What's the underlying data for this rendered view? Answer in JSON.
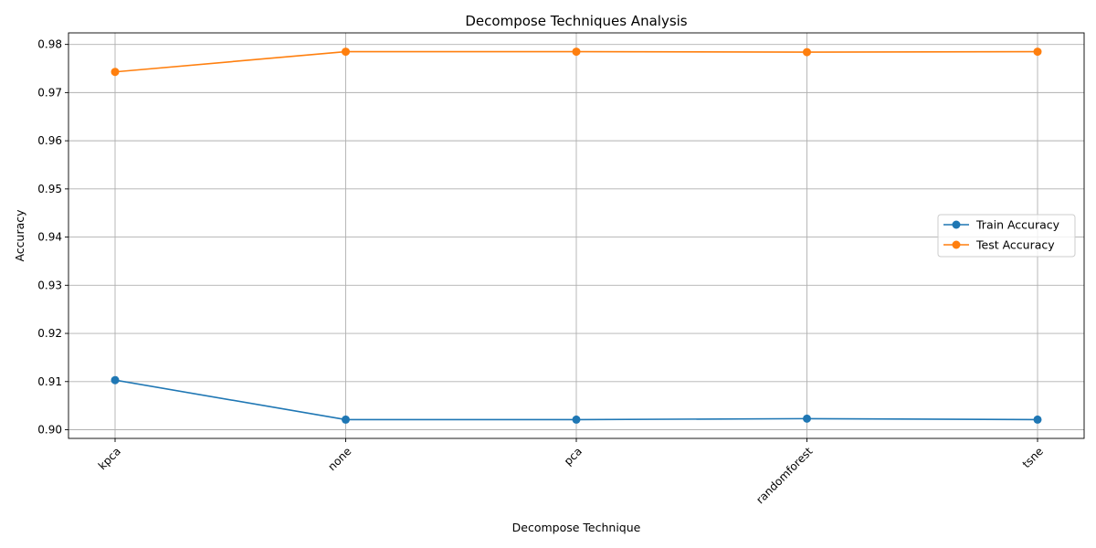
{
  "chart_data": {
    "type": "line",
    "title": "Decompose Techniques Analysis",
    "xlabel": "Decompose Technique",
    "ylabel": "Accuracy",
    "categories": [
      "kpca",
      "none",
      "pca",
      "randomforest",
      "tsne"
    ],
    "series": [
      {
        "name": "Train Accuracy",
        "color": "#1f77b4",
        "values": [
          0.9103,
          0.9021,
          0.9021,
          0.9023,
          0.9021
        ]
      },
      {
        "name": "Test Accuracy",
        "color": "#ff7f0e",
        "values": [
          0.9743,
          0.9785,
          0.9785,
          0.9784,
          0.9785
        ]
      }
    ],
    "ylim": [
      0.8982,
      0.9824
    ],
    "yticks": [
      "0.90",
      "0.91",
      "0.92",
      "0.93",
      "0.94",
      "0.95",
      "0.96",
      "0.97",
      "0.98"
    ],
    "grid": true,
    "legend_position": "center-right",
    "xtick_rotation": 45
  }
}
